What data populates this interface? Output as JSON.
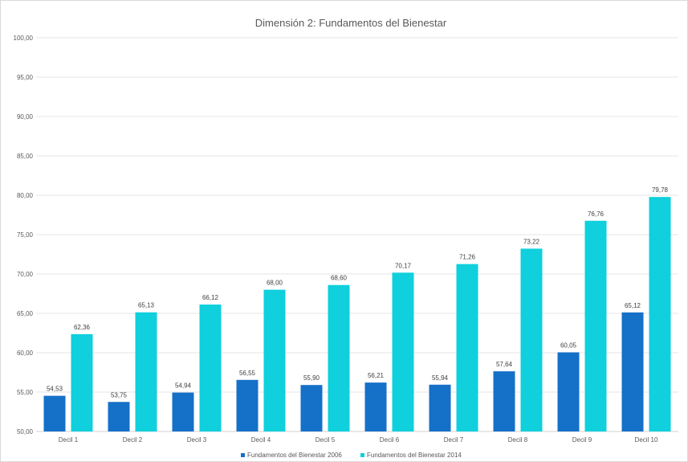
{
  "chart_data": {
    "type": "bar",
    "title": "Dimensión 2: Fundamentos del Bienestar",
    "categories": [
      "Decil 1",
      "Decil 2",
      "Decil 3",
      "Decil 4",
      "Decil 5",
      "Decil 6",
      "Decil 7",
      "Decil 8",
      "Decil 9",
      "Decil 10"
    ],
    "series": [
      {
        "name": "Fundamentos del Bienestar 2006",
        "color": "#1570c8",
        "values": [
          54.53,
          53.75,
          54.94,
          56.55,
          55.9,
          56.21,
          55.94,
          57.64,
          60.05,
          65.12
        ],
        "labels": [
          "54,53",
          "53,75",
          "54,94",
          "56,55",
          "55,90",
          "56,21",
          "55,94",
          "57,64",
          "60,05",
          "65,12"
        ]
      },
      {
        "name": "Fundamentos del Bienestar 2014",
        "color": "#0fd0dc",
        "values": [
          62.36,
          65.13,
          66.12,
          68.0,
          68.6,
          70.17,
          71.26,
          73.22,
          76.76,
          79.78
        ],
        "labels": [
          "62,36",
          "65,13",
          "66,12",
          "68,00",
          "68,60",
          "70,17",
          "71,26",
          "73,22",
          "76,76",
          "79,78"
        ]
      }
    ],
    "ylim": [
      50,
      100
    ],
    "yticks": [
      50,
      55,
      60,
      65,
      70,
      75,
      80,
      85,
      90,
      95,
      100
    ],
    "ytick_labels": [
      "50,00",
      "55,00",
      "60,00",
      "65,00",
      "70,00",
      "75,00",
      "80,00",
      "85,00",
      "90,00",
      "95,00",
      "100,00"
    ],
    "xlabel": "",
    "ylabel": "",
    "grid": true,
    "legend_position": "bottom"
  }
}
